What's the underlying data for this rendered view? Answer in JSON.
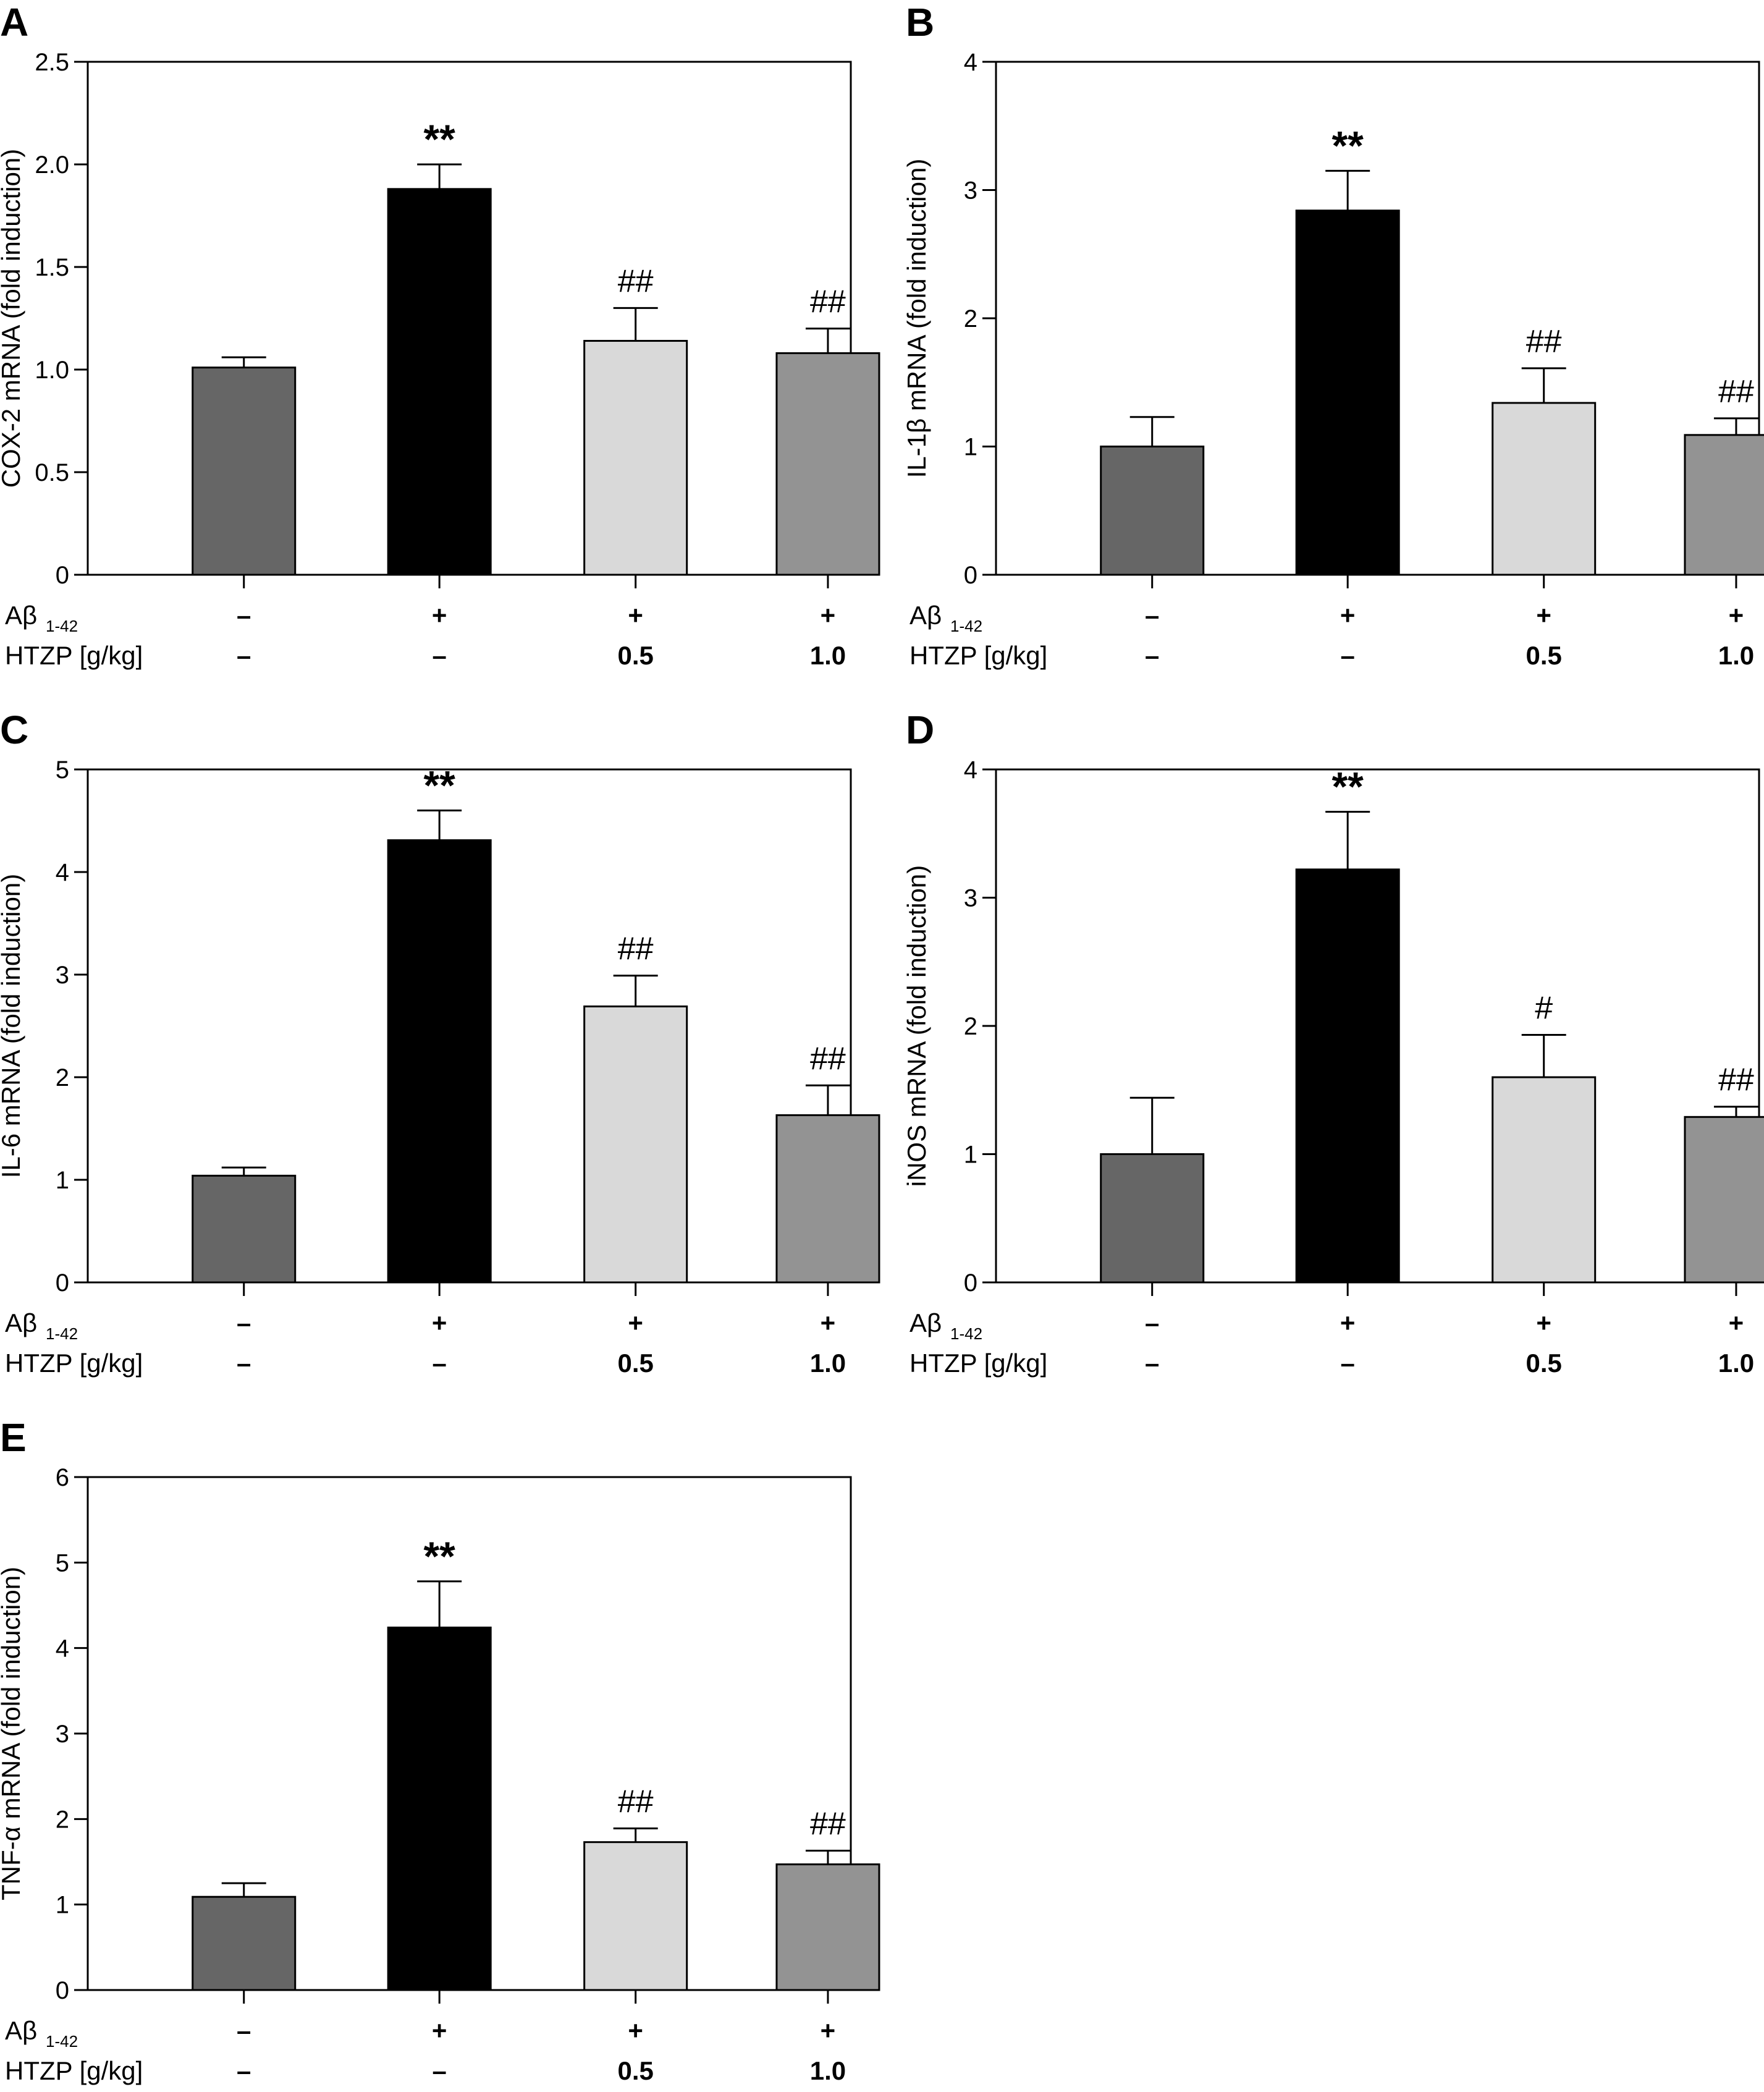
{
  "figure": {
    "row_labels": {
      "abeta": "Aβ",
      "abeta_sub": "1-42",
      "htzp": "HTZP [g/kg]"
    },
    "abeta_values": [
      "–",
      "+",
      "+",
      "+"
    ],
    "htzp_values": [
      "–",
      "–",
      "0.5",
      "1.0"
    ]
  },
  "colors": {
    "bar_fills": [
      "#666666",
      "#000000",
      "#d9d9d9",
      "#939393"
    ],
    "axis": "#000000"
  },
  "chart_data": [
    {
      "panel": "A",
      "type": "bar",
      "ylabel": "COX-2 mRNA (fold induction)",
      "ylim": [
        0,
        2.5
      ],
      "yticks": [
        "0",
        "0.5",
        "1.0",
        "1.5",
        "2.0",
        "2.5"
      ],
      "ytick_values": [
        0,
        0.5,
        1.0,
        1.5,
        2.0,
        2.5
      ],
      "values": [
        1.01,
        1.88,
        1.14,
        1.08
      ],
      "errors": [
        0.05,
        0.12,
        0.16,
        0.12
      ],
      "annotations": [
        "",
        "**",
        "##",
        "##"
      ]
    },
    {
      "panel": "B",
      "type": "bar",
      "ylabel": "IL-1β mRNA (fold induction)",
      "ylim": [
        0,
        4
      ],
      "yticks": [
        "0",
        "1",
        "2",
        "3",
        "4"
      ],
      "ytick_values": [
        0,
        1,
        2,
        3,
        4
      ],
      "values": [
        1.0,
        2.84,
        1.34,
        1.09
      ],
      "errors": [
        0.23,
        0.31,
        0.27,
        0.13
      ],
      "annotations": [
        "",
        "**",
        "##",
        "##"
      ]
    },
    {
      "panel": "C",
      "type": "bar",
      "ylabel": "IL-6 mRNA (fold induction)",
      "ylim": [
        0,
        5
      ],
      "yticks": [
        "0",
        "1",
        "2",
        "3",
        "4",
        "5"
      ],
      "ytick_values": [
        0,
        1,
        2,
        3,
        4,
        5
      ],
      "values": [
        1.04,
        4.31,
        2.69,
        1.63
      ],
      "errors": [
        0.08,
        0.29,
        0.3,
        0.29
      ],
      "annotations": [
        "",
        "**",
        "##",
        "##"
      ]
    },
    {
      "panel": "D",
      "type": "bar",
      "ylabel": "iNOS mRNA (fold induction)",
      "ylim": [
        0,
        4
      ],
      "yticks": [
        "0",
        "1",
        "2",
        "3",
        "4"
      ],
      "ytick_values": [
        0,
        1,
        2,
        3,
        4
      ],
      "values": [
        1.0,
        3.22,
        1.6,
        1.29
      ],
      "errors": [
        0.44,
        0.45,
        0.33,
        0.08
      ],
      "annotations": [
        "",
        "**",
        "#",
        "##"
      ]
    },
    {
      "panel": "E",
      "type": "bar",
      "ylabel": "TNF-α mRNA (fold induction)",
      "ylim": [
        0,
        6
      ],
      "yticks": [
        "0",
        "1",
        "2",
        "3",
        "4",
        "5",
        "6"
      ],
      "ytick_values": [
        0,
        1,
        2,
        3,
        4,
        5,
        6
      ],
      "values": [
        1.09,
        4.24,
        1.73,
        1.47
      ],
      "errors": [
        0.16,
        0.54,
        0.16,
        0.16
      ],
      "annotations": [
        "",
        "**",
        "##",
        "##"
      ]
    }
  ]
}
